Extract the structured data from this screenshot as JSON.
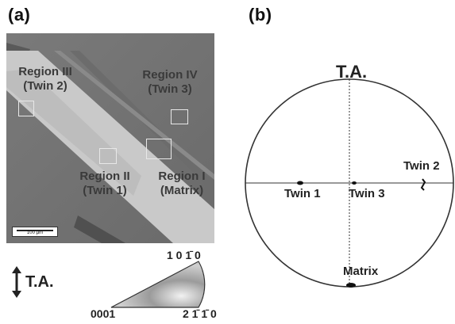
{
  "panels": {
    "a_label": "(a)",
    "b_label": "(b)"
  },
  "map": {
    "regions": [
      {
        "line1": "Region III",
        "line2": "(Twin 2)"
      },
      {
        "line1": "Region IV",
        "line2": "(Twin 3)"
      },
      {
        "line1": "Region II",
        "line2": "(Twin 1)"
      },
      {
        "line1": "Region I",
        "line2": "(Matrix)"
      }
    ],
    "scale_bar_text": "100 µm"
  },
  "tensile_axis_legend": "T.A.",
  "ipf": {
    "top_label": "10ŀ0",
    "bottom_left_label": "0001",
    "bottom_right_label": "2̄110"
  },
  "ipf_display": {
    "top": "1 0 1̄ 0",
    "bottom_left": "0001",
    "bottom_right": "2 1̄ 1̄ 0"
  },
  "pole_figure": {
    "top_label": "T.A.",
    "points": [
      {
        "name": "Twin 1"
      },
      {
        "name": "Twin 3"
      },
      {
        "name": "Twin 2"
      },
      {
        "name": "Matrix"
      }
    ]
  }
}
